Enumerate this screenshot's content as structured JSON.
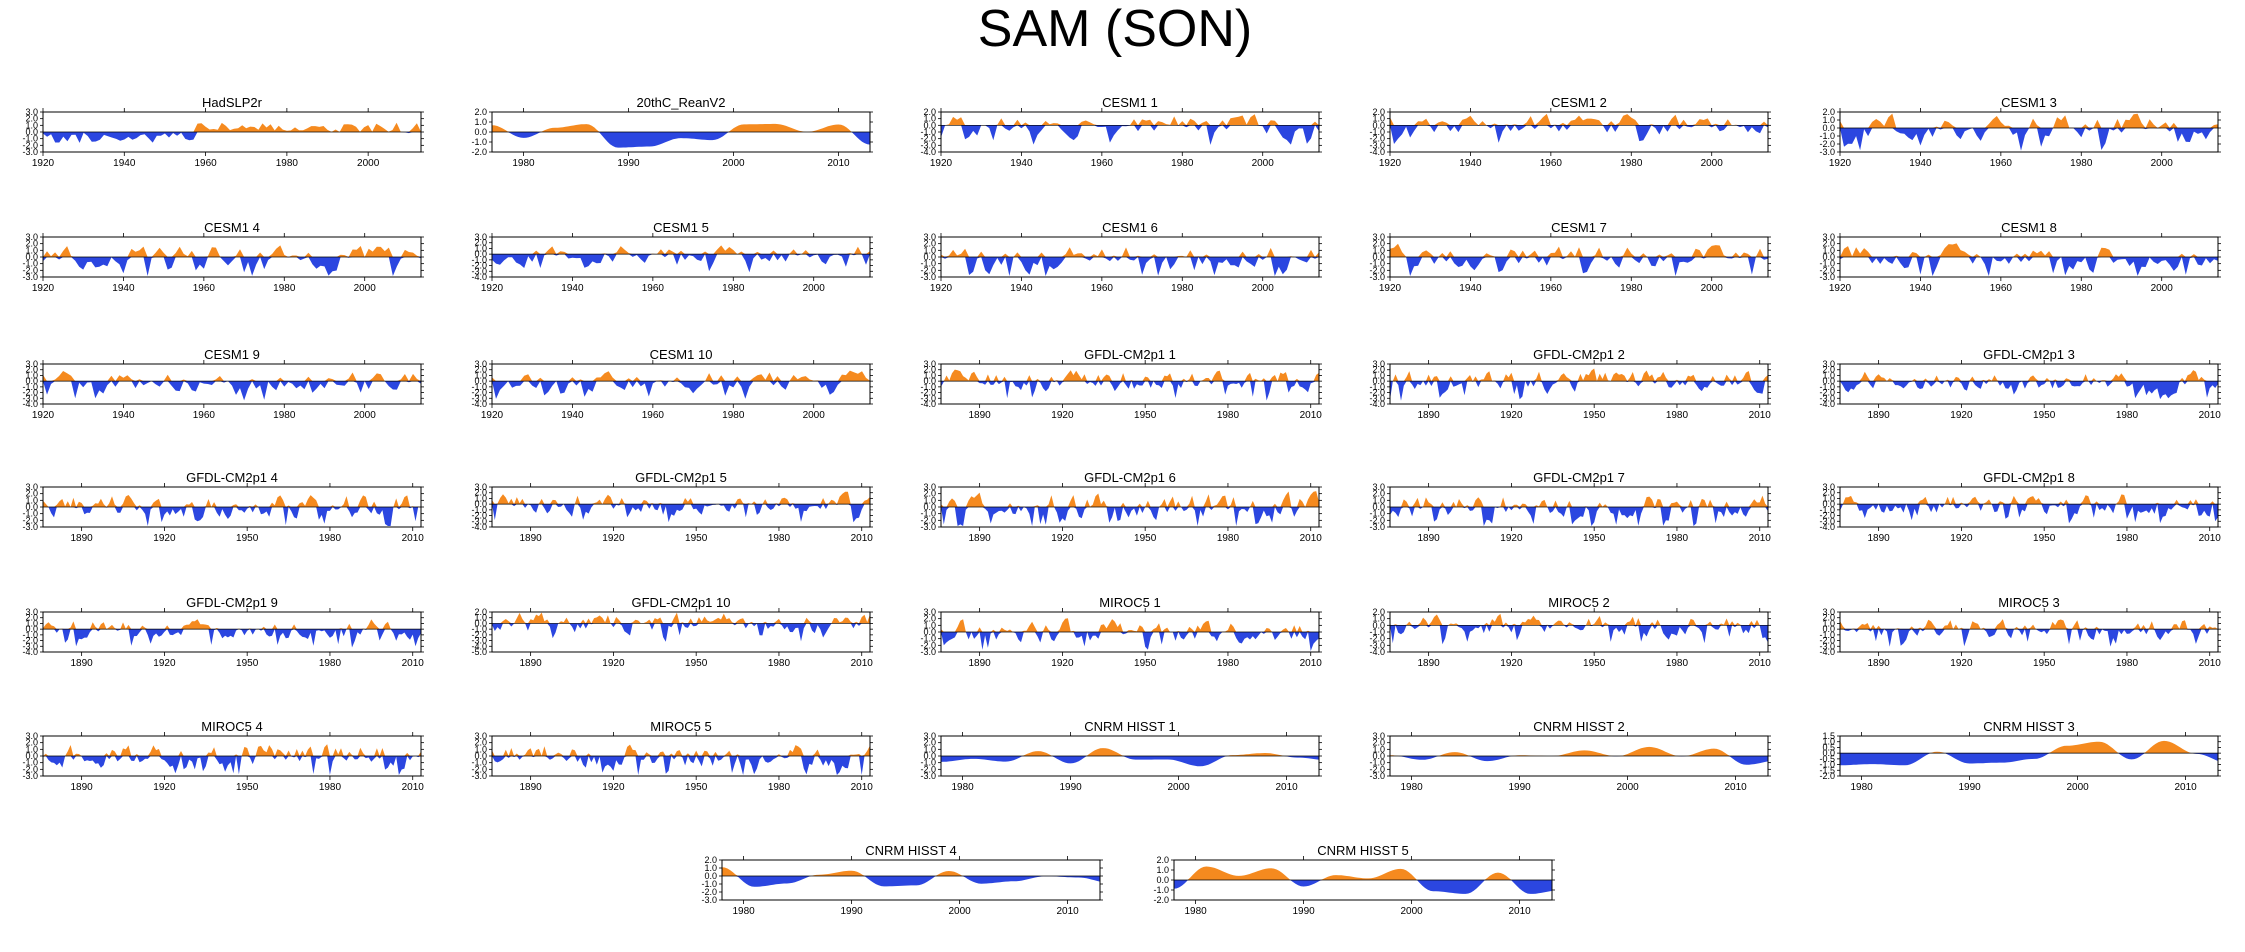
{
  "figure_title": "SAM (SON)",
  "colors": {
    "positive": "#f58a1f",
    "negative": "#2b46e0",
    "axis": "#000000"
  },
  "chart_data": [
    {
      "type": "area",
      "title": "HadSLP2r",
      "x_range": [
        1920,
        2013
      ],
      "xticks": [
        1920,
        1940,
        1960,
        1980,
        2000
      ],
      "ylim": [
        -3.0,
        3.0
      ],
      "yticks": [
        3.0,
        2.0,
        1.0,
        0.0,
        -1.0,
        -2.0,
        -3.0
      ],
      "seed": 11,
      "style": "mixed",
      "amplitude": 1.6
    },
    {
      "type": "area",
      "title": "20thC_ReanV2",
      "x_range": [
        1977,
        2013
      ],
      "xticks": [
        1980,
        1990,
        2000,
        2010
      ],
      "ylim": [
        -2.0,
        2.0
      ],
      "yticks": [
        2.0,
        1.0,
        0.0,
        -1.0,
        -2.0
      ],
      "seed": 23,
      "style": "smooth",
      "amplitude": 1.6
    },
    {
      "type": "area",
      "title": "CESM1 1",
      "x_range": [
        1920,
        2014
      ],
      "xticks": [
        1920,
        1940,
        1960,
        1980,
        2000
      ],
      "ylim": [
        -4.0,
        2.0
      ],
      "yticks": [
        2.0,
        1.0,
        0.0,
        -1.0,
        -2.0,
        -3.0,
        -4.0
      ],
      "seed": 31,
      "style": "noisy",
      "amplitude": 1.3
    },
    {
      "type": "area",
      "title": "CESM1 2",
      "x_range": [
        1920,
        2014
      ],
      "xticks": [
        1920,
        1940,
        1960,
        1980,
        2000
      ],
      "ylim": [
        -4.0,
        2.0
      ],
      "yticks": [
        2.0,
        1.0,
        0.0,
        -1.0,
        -2.0,
        -3.0,
        -4.0
      ],
      "seed": 37,
      "style": "noisy",
      "amplitude": 1.3
    },
    {
      "type": "area",
      "title": "CESM1 3",
      "x_range": [
        1920,
        2014
      ],
      "xticks": [
        1920,
        1940,
        1960,
        1980,
        2000
      ],
      "ylim": [
        -3.0,
        2.0
      ],
      "yticks": [
        2.0,
        1.0,
        0.0,
        -1.0,
        -2.0,
        -3.0
      ],
      "seed": 41,
      "style": "noisy",
      "amplitude": 1.3
    },
    {
      "type": "area",
      "title": "CESM1 4",
      "x_range": [
        1920,
        2014
      ],
      "xticks": [
        1920,
        1940,
        1960,
        1980,
        2000
      ],
      "ylim": [
        -3.0,
        3.0
      ],
      "yticks": [
        3.0,
        2.0,
        1.0,
        0.0,
        -1.0,
        -2.0,
        -3.0
      ],
      "seed": 43,
      "style": "noisy",
      "amplitude": 1.4
    },
    {
      "type": "area",
      "title": "CESM1 5",
      "x_range": [
        1920,
        2014
      ],
      "xticks": [
        1920,
        1940,
        1960,
        1980,
        2000
      ],
      "ylim": [
        -4.0,
        3.0
      ],
      "yticks": [
        3.0,
        2.0,
        1.0,
        0.0,
        -1.0,
        -2.0,
        -3.0,
        -4.0
      ],
      "seed": 47,
      "style": "noisy",
      "amplitude": 1.4
    },
    {
      "type": "area",
      "title": "CESM1 6",
      "x_range": [
        1920,
        2014
      ],
      "xticks": [
        1920,
        1940,
        1960,
        1980,
        2000
      ],
      "ylim": [
        -3.0,
        3.0
      ],
      "yticks": [
        3.0,
        2.0,
        1.0,
        0.0,
        -1.0,
        -2.0,
        -3.0
      ],
      "seed": 53,
      "style": "noisy",
      "amplitude": 1.4
    },
    {
      "type": "area",
      "title": "CESM1 7",
      "x_range": [
        1920,
        2014
      ],
      "xticks": [
        1920,
        1940,
        1960,
        1980,
        2000
      ],
      "ylim": [
        -3.0,
        3.0
      ],
      "yticks": [
        3.0,
        2.0,
        1.0,
        0.0,
        -1.0,
        -2.0,
        -3.0
      ],
      "seed": 59,
      "style": "noisy",
      "amplitude": 1.4
    },
    {
      "type": "area",
      "title": "CESM1 8",
      "x_range": [
        1920,
        2014
      ],
      "xticks": [
        1920,
        1940,
        1960,
        1980,
        2000
      ],
      "ylim": [
        -3.0,
        3.0
      ],
      "yticks": [
        3.0,
        2.0,
        1.0,
        0.0,
        -1.0,
        -2.0,
        -3.0
      ],
      "seed": 61,
      "style": "noisy",
      "amplitude": 1.4
    },
    {
      "type": "area",
      "title": "CESM1 9",
      "x_range": [
        1920,
        2014
      ],
      "xticks": [
        1920,
        1940,
        1960,
        1980,
        2000
      ],
      "ylim": [
        -4.0,
        3.0
      ],
      "yticks": [
        3.0,
        2.0,
        1.0,
        0.0,
        -1.0,
        -2.0,
        -3.0,
        -4.0
      ],
      "seed": 67,
      "style": "noisy",
      "amplitude": 1.5
    },
    {
      "type": "area",
      "title": "CESM1 10",
      "x_range": [
        1920,
        2014
      ],
      "xticks": [
        1920,
        1940,
        1960,
        1980,
        2000
      ],
      "ylim": [
        -4.0,
        3.0
      ],
      "yticks": [
        3.0,
        2.0,
        1.0,
        0.0,
        -1.0,
        -2.0,
        -3.0,
        -4.0
      ],
      "seed": 71,
      "style": "noisy",
      "amplitude": 1.4
    },
    {
      "type": "area",
      "title": "GFDL-CM2p1 1",
      "x_range": [
        1876,
        2013
      ],
      "xticks": [
        1890,
        1920,
        1950,
        1980,
        2010
      ],
      "ylim": [
        -4.0,
        3.0
      ],
      "yticks": [
        3.0,
        2.0,
        1.0,
        0.0,
        -1.0,
        -2.0,
        -3.0,
        -4.0
      ],
      "seed": 73,
      "style": "noisy",
      "amplitude": 1.5
    },
    {
      "type": "area",
      "title": "GFDL-CM2p1 2",
      "x_range": [
        1876,
        2013
      ],
      "xticks": [
        1890,
        1920,
        1950,
        1980,
        2010
      ],
      "ylim": [
        -4.0,
        3.0
      ],
      "yticks": [
        3.0,
        2.0,
        1.0,
        0.0,
        -1.0,
        -2.0,
        -3.0,
        -4.0
      ],
      "seed": 79,
      "style": "noisy",
      "amplitude": 1.5
    },
    {
      "type": "area",
      "title": "GFDL-CM2p1 3",
      "x_range": [
        1876,
        2013
      ],
      "xticks": [
        1890,
        1920,
        1950,
        1980,
        2010
      ],
      "ylim": [
        -4.0,
        3.0
      ],
      "yticks": [
        3.0,
        2.0,
        1.0,
        0.0,
        -1.0,
        -2.0,
        -3.0,
        -4.0
      ],
      "seed": 83,
      "style": "noisy",
      "amplitude": 1.4
    },
    {
      "type": "area",
      "title": "GFDL-CM2p1 4",
      "x_range": [
        1876,
        2013
      ],
      "xticks": [
        1890,
        1920,
        1950,
        1980,
        2010
      ],
      "ylim": [
        -3.0,
        3.0
      ],
      "yticks": [
        3.0,
        2.0,
        1.0,
        0.0,
        -1.0,
        -2.0,
        -3.0
      ],
      "seed": 89,
      "style": "noisy",
      "amplitude": 1.4
    },
    {
      "type": "area",
      "title": "GFDL-CM2p1 5",
      "x_range": [
        1876,
        2013
      ],
      "xticks": [
        1890,
        1920,
        1950,
        1980,
        2010
      ],
      "ylim": [
        -4.0,
        3.0
      ],
      "yticks": [
        3.0,
        2.0,
        1.0,
        0.0,
        -1.0,
        -2.0,
        -3.0,
        -4.0
      ],
      "seed": 97,
      "style": "noisy",
      "amplitude": 1.4
    },
    {
      "type": "area",
      "title": "GFDL-CM2p1 6",
      "x_range": [
        1876,
        2013
      ],
      "xticks": [
        1890,
        1920,
        1950,
        1980,
        2010
      ],
      "ylim": [
        -3.0,
        3.0
      ],
      "yticks": [
        3.0,
        2.0,
        1.0,
        0.0,
        -1.0,
        -2.0,
        -3.0
      ],
      "seed": 101,
      "style": "noisy",
      "amplitude": 1.6
    },
    {
      "type": "area",
      "title": "GFDL-CM2p1 7",
      "x_range": [
        1876,
        2013
      ],
      "xticks": [
        1890,
        1920,
        1950,
        1980,
        2010
      ],
      "ylim": [
        -3.0,
        3.0
      ],
      "yticks": [
        3.0,
        2.0,
        1.0,
        0.0,
        -1.0,
        -2.0,
        -3.0
      ],
      "seed": 103,
      "style": "noisy",
      "amplitude": 1.4
    },
    {
      "type": "area",
      "title": "GFDL-CM2p1 8",
      "x_range": [
        1876,
        2013
      ],
      "xticks": [
        1890,
        1920,
        1950,
        1980,
        2010
      ],
      "ylim": [
        -4.0,
        3.0
      ],
      "yticks": [
        3.0,
        2.0,
        1.0,
        0.0,
        -1.0,
        -2.0,
        -3.0,
        -4.0
      ],
      "seed": 107,
      "style": "noisy",
      "amplitude": 1.5
    },
    {
      "type": "area",
      "title": "GFDL-CM2p1 9",
      "x_range": [
        1876,
        2013
      ],
      "xticks": [
        1890,
        1920,
        1950,
        1980,
        2010
      ],
      "ylim": [
        -4.0,
        3.0
      ],
      "yticks": [
        3.0,
        2.0,
        1.0,
        0.0,
        -1.0,
        -2.0,
        -3.0,
        -4.0
      ],
      "seed": 109,
      "style": "noisy",
      "amplitude": 1.4
    },
    {
      "type": "area",
      "title": "GFDL-CM2p1 10",
      "x_range": [
        1876,
        2013
      ],
      "xticks": [
        1890,
        1920,
        1950,
        1980,
        2010
      ],
      "ylim": [
        -5.0,
        2.0
      ],
      "yticks": [
        2.0,
        1.0,
        0.0,
        -1.0,
        -2.0,
        -3.0,
        -4.0,
        -5.0
      ],
      "seed": 113,
      "style": "noisy",
      "amplitude": 1.5
    },
    {
      "type": "area",
      "title": "MIROC5 1",
      "x_range": [
        1876,
        2013
      ],
      "xticks": [
        1890,
        1920,
        1950,
        1980,
        2010
      ],
      "ylim": [
        -3.0,
        3.0
      ],
      "yticks": [
        3.0,
        2.0,
        1.0,
        0.0,
        -1.0,
        -2.0,
        -3.0
      ],
      "seed": 127,
      "style": "noisy",
      "amplitude": 1.4
    },
    {
      "type": "area",
      "title": "MIROC5 2",
      "x_range": [
        1876,
        2013
      ],
      "xticks": [
        1890,
        1920,
        1950,
        1980,
        2010
      ],
      "ylim": [
        -4.0,
        2.0
      ],
      "yticks": [
        2.0,
        1.0,
        0.0,
        -1.0,
        -2.0,
        -3.0,
        -4.0
      ],
      "seed": 131,
      "style": "noisy",
      "amplitude": 1.3
    },
    {
      "type": "area",
      "title": "MIROC5 3",
      "x_range": [
        1876,
        2013
      ],
      "xticks": [
        1890,
        1920,
        1950,
        1980,
        2010
      ],
      "ylim": [
        -4.0,
        3.0
      ],
      "yticks": [
        3.0,
        2.0,
        1.0,
        0.0,
        -1.0,
        -2.0,
        -3.0,
        -4.0
      ],
      "seed": 137,
      "style": "noisy",
      "amplitude": 1.4
    },
    {
      "type": "area",
      "title": "MIROC5 4",
      "x_range": [
        1876,
        2013
      ],
      "xticks": [
        1890,
        1920,
        1950,
        1980,
        2010
      ],
      "ylim": [
        -3.0,
        3.0
      ],
      "yticks": [
        3.0,
        2.0,
        1.0,
        0.0,
        -1.0,
        -2.0,
        -3.0
      ],
      "seed": 139,
      "style": "noisy",
      "amplitude": 1.4
    },
    {
      "type": "area",
      "title": "MIROC5 5",
      "x_range": [
        1876,
        2013
      ],
      "xticks": [
        1890,
        1920,
        1950,
        1980,
        2010
      ],
      "ylim": [
        -3.0,
        3.0
      ],
      "yticks": [
        3.0,
        2.0,
        1.0,
        0.0,
        -1.0,
        -2.0,
        -3.0
      ],
      "seed": 149,
      "style": "noisy",
      "amplitude": 1.4
    },
    {
      "type": "area",
      "title": "CNRM HISST 1",
      "x_range": [
        1978,
        2013
      ],
      "xticks": [
        1980,
        1990,
        2000,
        2010
      ],
      "ylim": [
        -3.0,
        3.0
      ],
      "yticks": [
        3.0,
        2.0,
        1.0,
        0.0,
        -1.0,
        -2.0,
        -3.0
      ],
      "seed": 151,
      "style": "smooth",
      "amplitude": 1.6
    },
    {
      "type": "area",
      "title": "CNRM HISST 2",
      "x_range": [
        1978,
        2013
      ],
      "xticks": [
        1980,
        1990,
        2000,
        2010
      ],
      "ylim": [
        -3.0,
        3.0
      ],
      "yticks": [
        3.0,
        2.0,
        1.0,
        0.0,
        -1.0,
        -2.0,
        -3.0
      ],
      "seed": 157,
      "style": "smooth",
      "amplitude": 1.4
    },
    {
      "type": "area",
      "title": "CNRM HISST 3",
      "x_range": [
        1978,
        2013
      ],
      "xticks": [
        1980,
        1990,
        2000,
        2010
      ],
      "ylim": [
        -2.0,
        1.5
      ],
      "yticks": [
        1.5,
        1.0,
        0.5,
        0.0,
        -0.5,
        -1.0,
        -1.5,
        -2.0
      ],
      "seed": 163,
      "style": "smooth",
      "amplitude": 1.1
    },
    {
      "type": "area",
      "title": "CNRM HISST 4",
      "x_range": [
        1978,
        2013
      ],
      "xticks": [
        1980,
        1990,
        2000,
        2010
      ],
      "ylim": [
        -3.0,
        2.0
      ],
      "yticks": [
        2.0,
        1.0,
        0.0,
        -1.0,
        -2.0,
        -3.0
      ],
      "seed": 167,
      "style": "smooth",
      "amplitude": 1.4
    },
    {
      "type": "area",
      "title": "CNRM HISST 5",
      "x_range": [
        1978,
        2013
      ],
      "xticks": [
        1980,
        1990,
        2000,
        2010
      ],
      "ylim": [
        -2.0,
        2.0
      ],
      "yticks": [
        2.0,
        1.0,
        0.0,
        -1.0,
        -2.0
      ],
      "seed": 173,
      "style": "smooth",
      "amplitude": 1.5
    }
  ]
}
